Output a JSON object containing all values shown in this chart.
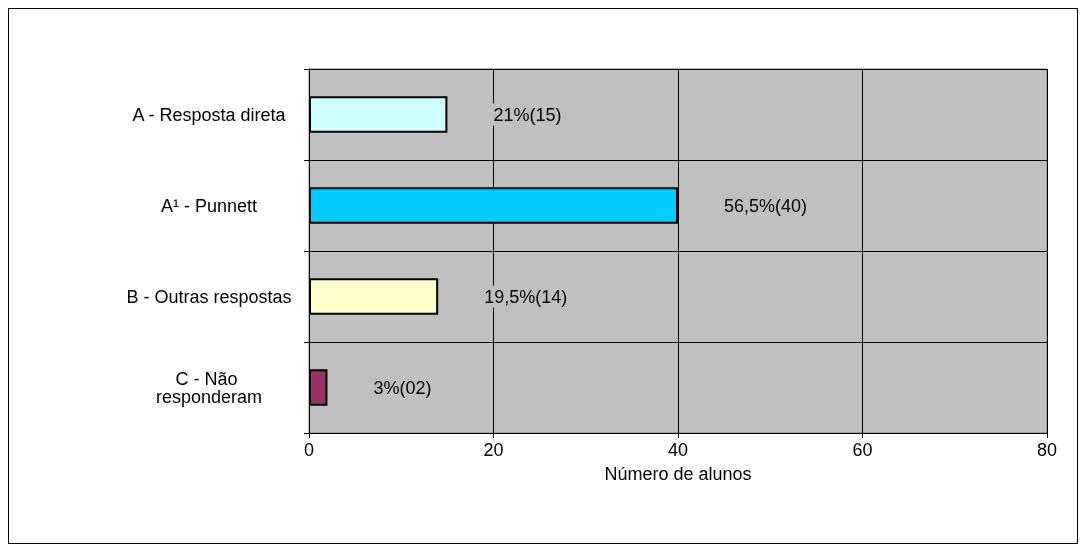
{
  "chart_data": {
    "type": "bar",
    "orientation": "horizontal",
    "xlabel": "Número de alunos",
    "categories": [
      "A - Resposta direta",
      "A¹ - Punnett",
      "B - Outras respostas",
      "C - Não responderam"
    ],
    "values": [
      15,
      40,
      14,
      2
    ],
    "colors": [
      "#ccffff",
      "#00ccff",
      "#ffffcc",
      "#993366"
    ],
    "value_labels": [
      "21%(15)",
      "56,5%(40)",
      "19,5%(14)",
      "3%(02)"
    ],
    "xlim": [
      0,
      80
    ],
    "xticks": [
      0,
      20,
      40,
      60,
      80
    ],
    "grid": true
  }
}
